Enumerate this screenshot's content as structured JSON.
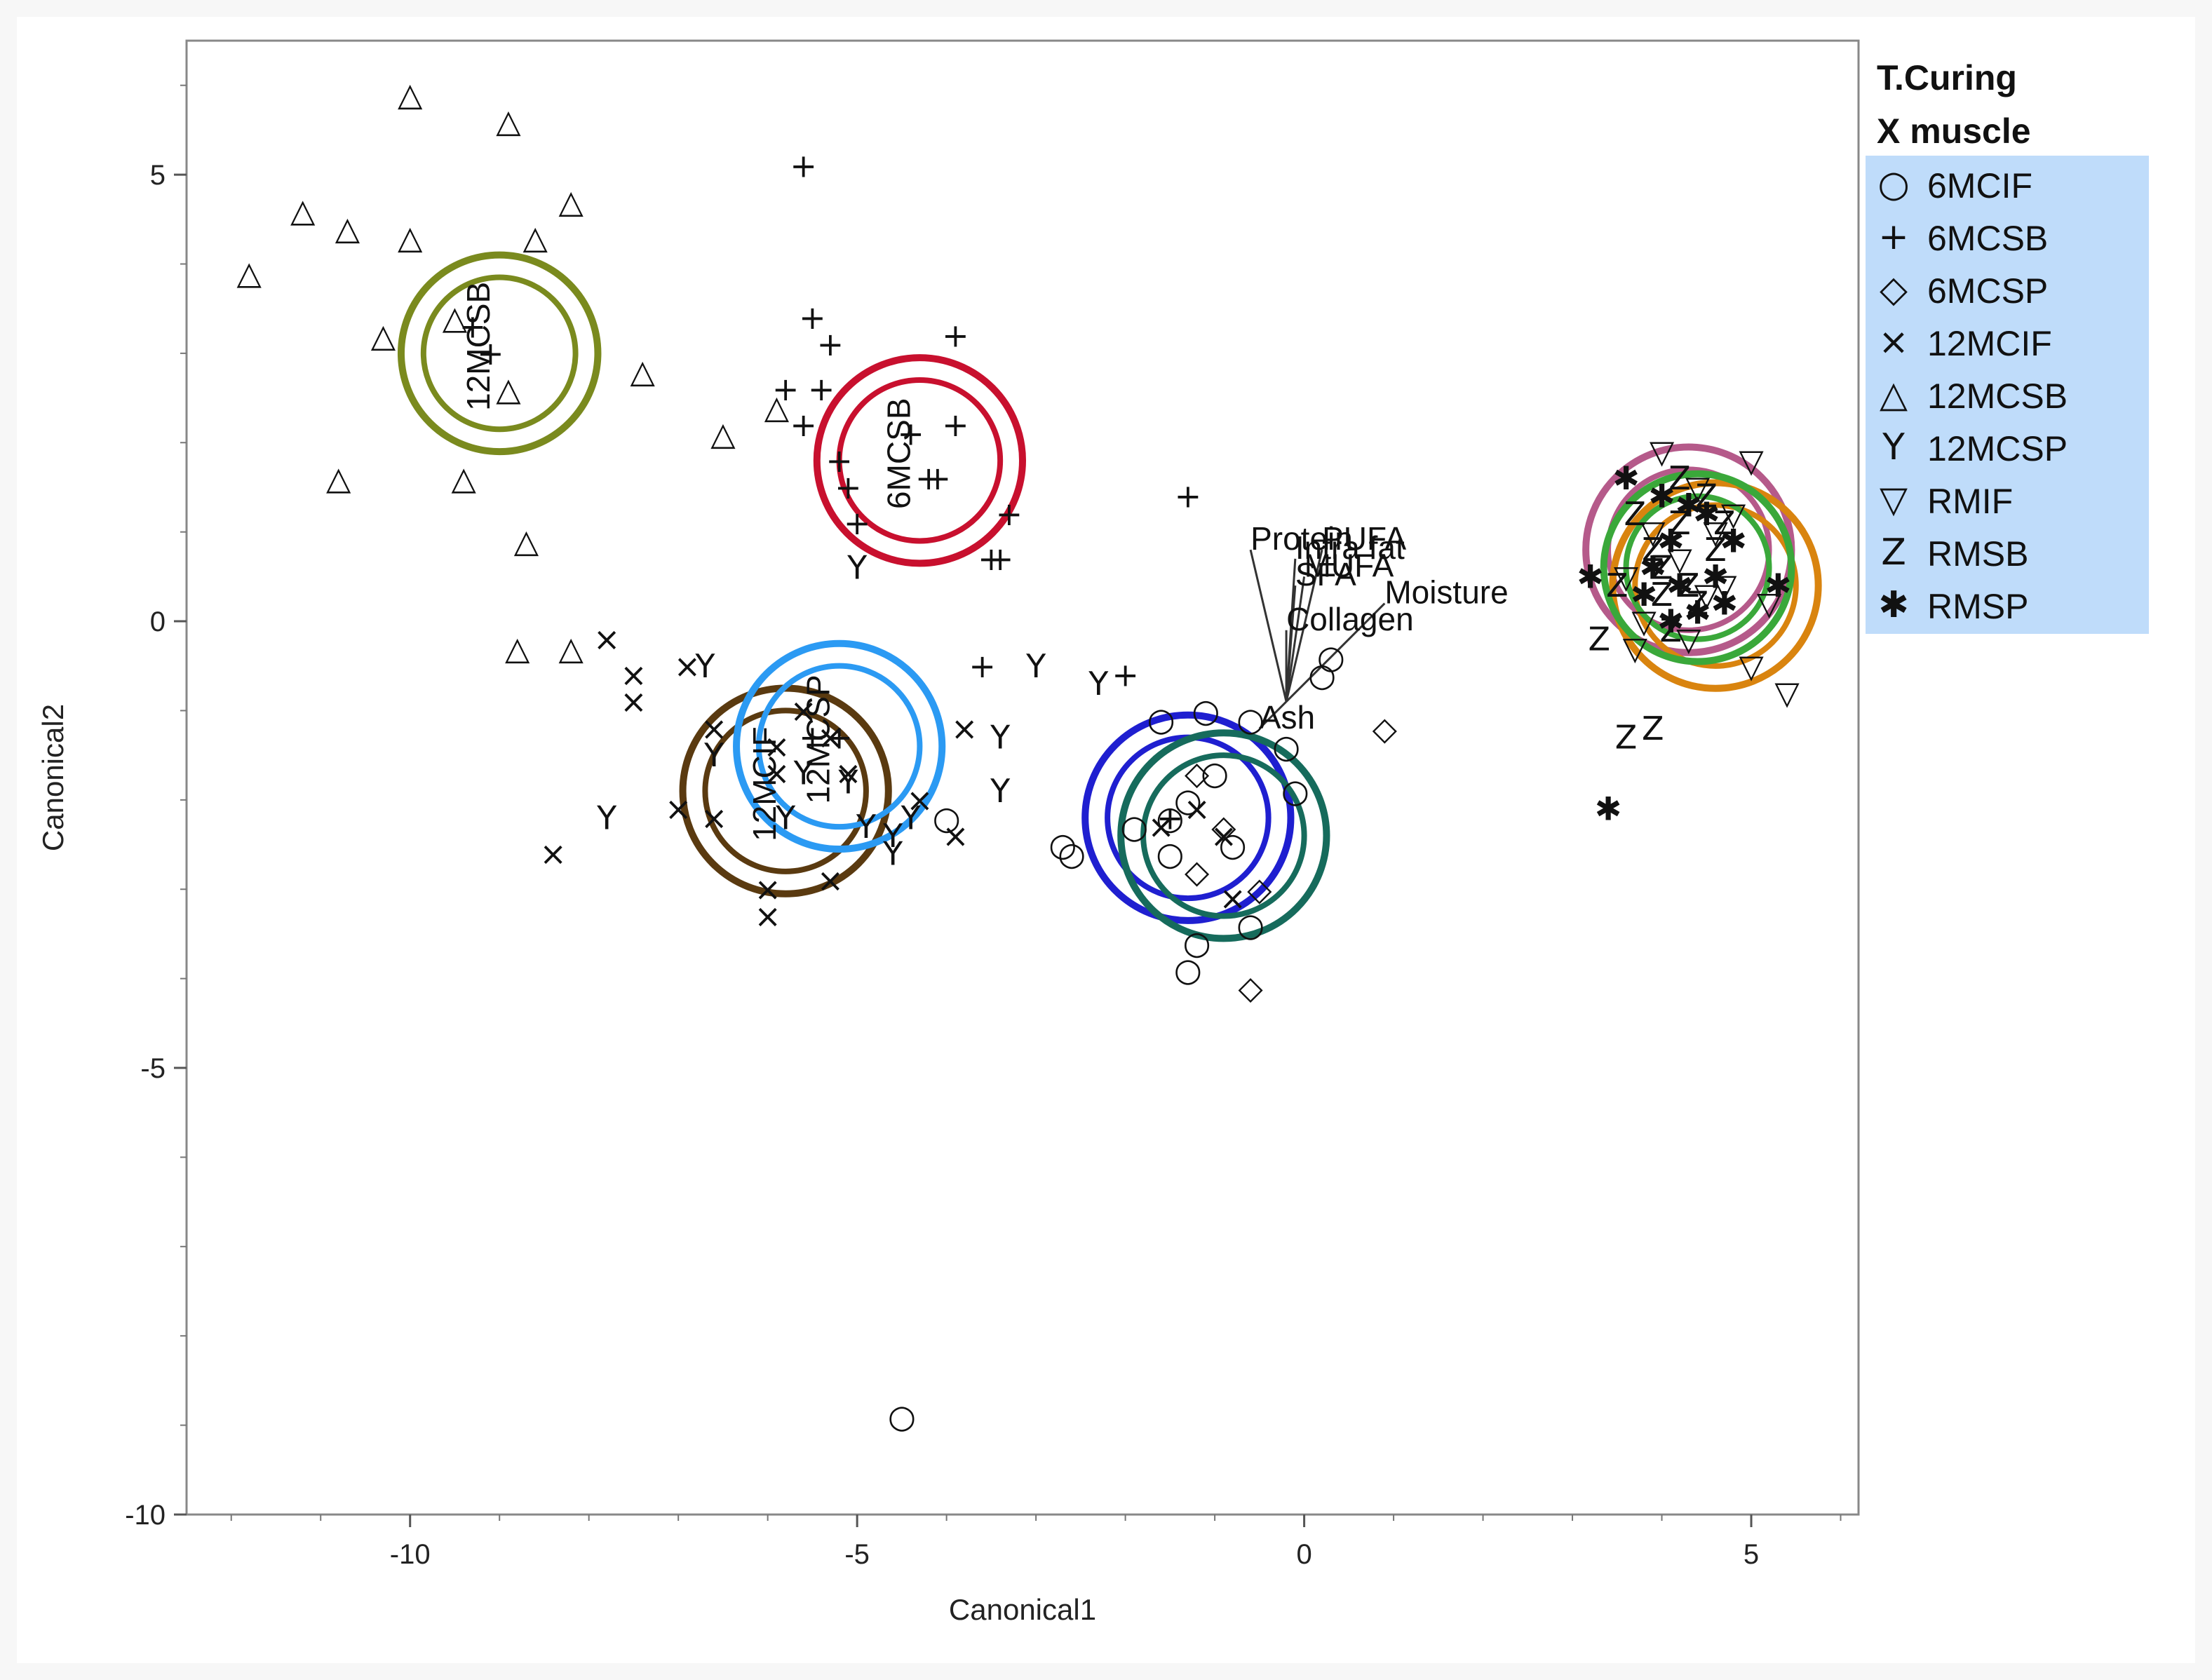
{
  "chart_data": {
    "type": "scatter",
    "title": "",
    "xlabel": "Canonical1",
    "ylabel": "Canonical2",
    "xlim": [
      -12.5,
      6.2
    ],
    "ylim": [
      -10,
      6.5
    ],
    "xticks": [
      -10,
      -5,
      0,
      5
    ],
    "yticks": [
      -10,
      -5,
      0,
      5
    ],
    "xtick_labels": [
      "-10",
      "-5",
      "0",
      "5"
    ],
    "ytick_labels": [
      "-10",
      "-5",
      "0",
      "5"
    ],
    "legend": {
      "title_line1": "T.Curing",
      "title_line2": "X muscle",
      "position": "right",
      "entries": [
        {
          "label": "6MCIF",
          "symbol": "○"
        },
        {
          "label": "6MCSB",
          "symbol": "+"
        },
        {
          "label": "6MCSP",
          "symbol": "◇"
        },
        {
          "label": "12MCIF",
          "symbol": "×"
        },
        {
          "label": "12MCSB",
          "symbol": "△"
        },
        {
          "label": "12MCSP",
          "symbol": "Y"
        },
        {
          "label": "RMIF",
          "symbol": "▽"
        },
        {
          "label": "RMSB",
          "symbol": "Z"
        },
        {
          "label": "RMSP",
          "symbol": "✱"
        }
      ]
    },
    "series": [
      {
        "name": "6MCIF",
        "symbol": "○",
        "points": [
          [
            -1.3,
            -2.0
          ],
          [
            -1.0,
            -1.7
          ],
          [
            -0.8,
            -2.5
          ],
          [
            -1.5,
            -2.6
          ],
          [
            -1.2,
            -3.6
          ],
          [
            -1.3,
            -3.9
          ],
          [
            -0.6,
            -3.4
          ],
          [
            -0.6,
            -1.1
          ],
          [
            -1.1,
            -1.0
          ],
          [
            -1.6,
            -1.1
          ],
          [
            -2.7,
            -2.5
          ],
          [
            -2.6,
            -2.6
          ],
          [
            -0.2,
            -1.4
          ],
          [
            0.2,
            -0.6
          ],
          [
            0.3,
            -0.4
          ],
          [
            -0.1,
            -1.9
          ],
          [
            -1.5,
            -2.2
          ],
          [
            -1.9,
            -2.3
          ],
          [
            -4.0,
            -2.2
          ],
          [
            -4.5,
            -8.9
          ]
        ]
      },
      {
        "name": "6MCSB",
        "symbol": "+",
        "points": [
          [
            -5.6,
            5.1
          ],
          [
            -5.5,
            3.4
          ],
          [
            -5.3,
            3.1
          ],
          [
            -5.4,
            2.6
          ],
          [
            -5.8,
            2.6
          ],
          [
            -5.6,
            2.2
          ],
          [
            -5.2,
            1.8
          ],
          [
            -5.1,
            1.5
          ],
          [
            -5.0,
            1.1
          ],
          [
            -4.4,
            2.1
          ],
          [
            -4.2,
            1.6
          ],
          [
            -4.1,
            1.6
          ],
          [
            -3.9,
            2.2
          ],
          [
            -3.9,
            3.2
          ],
          [
            -3.3,
            1.2
          ],
          [
            -3.4,
            0.7
          ],
          [
            -3.5,
            0.7
          ],
          [
            -1.3,
            1.4
          ],
          [
            -3.6,
            -0.5
          ],
          [
            -2.0,
            -0.6
          ],
          [
            -9.3,
            3.3
          ],
          [
            -9.1,
            3.0
          ],
          [
            -5.2,
            -1.3
          ],
          [
            -5.5,
            -1.3
          ],
          [
            -1.5,
            -2.2
          ]
        ]
      },
      {
        "name": "6MCSP",
        "symbol": "◇",
        "points": [
          [
            0.9,
            -1.2
          ],
          [
            -0.6,
            -4.1
          ],
          [
            -1.2,
            -2.8
          ],
          [
            -0.9,
            -2.3
          ],
          [
            -1.2,
            -1.7
          ],
          [
            -0.5,
            -3.0
          ]
        ]
      },
      {
        "name": "12MCIF",
        "symbol": "×",
        "points": [
          [
            -7.8,
            -0.2
          ],
          [
            -7.5,
            -0.6
          ],
          [
            -7.5,
            -0.9
          ],
          [
            -6.9,
            -0.5
          ],
          [
            -6.6,
            -1.2
          ],
          [
            -7.0,
            -2.1
          ],
          [
            -6.6,
            -2.2
          ],
          [
            -8.4,
            -2.6
          ],
          [
            -6.0,
            -3.0
          ],
          [
            -6.0,
            -3.3
          ],
          [
            -5.3,
            -2.9
          ],
          [
            -5.1,
            -1.7
          ],
          [
            -5.3,
            -1.3
          ],
          [
            -4.3,
            -2.0
          ],
          [
            -3.9,
            -2.4
          ],
          [
            -3.8,
            -1.2
          ],
          [
            -5.9,
            -1.4
          ],
          [
            -5.6,
            -1.0
          ],
          [
            -5.9,
            -1.7
          ],
          [
            -1.2,
            -2.1
          ],
          [
            -0.9,
            -2.4
          ],
          [
            -1.6,
            -2.3
          ],
          [
            -0.8,
            -3.1
          ]
        ]
      },
      {
        "name": "12MCSB",
        "symbol": "△",
        "points": [
          [
            -10.0,
            5.9
          ],
          [
            -8.9,
            5.6
          ],
          [
            -11.2,
            4.6
          ],
          [
            -10.7,
            4.4
          ],
          [
            -10.0,
            4.3
          ],
          [
            -8.2,
            4.7
          ],
          [
            -8.6,
            4.3
          ],
          [
            -11.8,
            3.9
          ],
          [
            -10.3,
            3.2
          ],
          [
            -9.5,
            3.4
          ],
          [
            -8.9,
            2.6
          ],
          [
            -7.4,
            2.8
          ],
          [
            -6.5,
            2.1
          ],
          [
            -5.9,
            2.4
          ],
          [
            -10.8,
            1.6
          ],
          [
            -9.4,
            1.6
          ],
          [
            -8.7,
            0.9
          ],
          [
            -8.8,
            -0.3
          ],
          [
            -8.2,
            -0.3
          ]
        ]
      },
      {
        "name": "12MCSP",
        "symbol": "Y",
        "points": [
          [
            -6.7,
            -0.5
          ],
          [
            -3.0,
            -0.5
          ],
          [
            -2.3,
            -0.7
          ],
          [
            -6.6,
            -1.5
          ],
          [
            -7.8,
            -2.2
          ],
          [
            -3.4,
            -1.3
          ],
          [
            -3.4,
            -1.9
          ],
          [
            -5.0,
            0.6
          ],
          [
            -4.6,
            -2.4
          ],
          [
            -4.4,
            -2.2
          ],
          [
            -4.6,
            -2.6
          ],
          [
            -5.6,
            -1.7
          ],
          [
            -5.8,
            -2.2
          ],
          [
            -4.9,
            -2.3
          ],
          [
            -5.1,
            -1.8
          ]
        ]
      },
      {
        "name": "RMIF",
        "symbol": "▽",
        "points": [
          [
            5.0,
            1.8
          ],
          [
            5.4,
            -0.8
          ],
          [
            4.8,
            1.2
          ],
          [
            5.2,
            0.2
          ],
          [
            5.0,
            -0.5
          ],
          [
            4.7,
            0.4
          ],
          [
            3.6,
            0.5
          ],
          [
            4.0,
            1.9
          ],
          [
            3.8,
            0.0
          ],
          [
            3.7,
            -0.3
          ],
          [
            4.4,
            1.5
          ],
          [
            4.6,
            1.0
          ],
          [
            4.2,
            0.7
          ],
          [
            4.5,
            0.3
          ],
          [
            3.9,
            1.0
          ],
          [
            4.3,
            -0.2
          ]
        ]
      },
      {
        "name": "RMSB",
        "symbol": "Z",
        "points": [
          [
            3.6,
            -1.3
          ],
          [
            3.9,
            -1.2
          ],
          [
            3.3,
            -0.2
          ],
          [
            3.5,
            0.4
          ],
          [
            4.0,
            0.6
          ],
          [
            4.2,
            1.1
          ],
          [
            4.4,
            0.2
          ],
          [
            4.6,
            0.8
          ],
          [
            4.1,
            -0.1
          ],
          [
            3.7,
            1.2
          ],
          [
            4.5,
            1.4
          ],
          [
            4.3,
            0.4
          ],
          [
            3.9,
            0.8
          ],
          [
            4.7,
            1.1
          ],
          [
            4.2,
            1.6
          ],
          [
            4.0,
            0.3
          ]
        ]
      },
      {
        "name": "RMSP",
        "symbol": "✱",
        "points": [
          [
            3.4,
            -2.1
          ],
          [
            3.2,
            0.5
          ],
          [
            3.6,
            1.6
          ],
          [
            4.1,
            0.9
          ],
          [
            4.6,
            0.5
          ],
          [
            4.8,
            0.9
          ],
          [
            4.3,
            1.3
          ],
          [
            4.4,
            0.1
          ],
          [
            3.9,
            0.6
          ],
          [
            4.7,
            0.2
          ],
          [
            4.0,
            1.4
          ],
          [
            4.5,
            1.2
          ],
          [
            4.2,
            0.4
          ],
          [
            3.8,
            0.3
          ],
          [
            5.3,
            0.4
          ],
          [
            4.1,
            0.0
          ]
        ]
      }
    ],
    "ellipses": [
      {
        "label": "12MCSB",
        "label_visible": true,
        "color": "#7a8a1e",
        "center": [
          -9.0,
          3.0
        ],
        "r_outer": 1.1,
        "r_inner": 0.85
      },
      {
        "label": "6MCSB",
        "label_visible": true,
        "color": "#c8102e",
        "center": [
          -4.3,
          1.8
        ],
        "r_outer": 1.15,
        "r_inner": 0.9
      },
      {
        "label": "12MCIF",
        "label_visible": true,
        "color": "#5a3a10",
        "center": [
          -5.8,
          -1.9
        ],
        "r_outer": 1.15,
        "r_inner": 0.9
      },
      {
        "label": "12MCSP",
        "label_visible": true,
        "color": "#2b9af3",
        "center": [
          -5.2,
          -1.4
        ],
        "r_outer": 1.15,
        "r_inner": 0.9
      },
      {
        "label": "6MCIF",
        "label_visible": false,
        "color": "#1f1fd0",
        "center": [
          -1.3,
          -2.2
        ],
        "r_outer": 1.15,
        "r_inner": 0.9
      },
      {
        "label": "6MCSP",
        "label_visible": false,
        "color": "#166b5c",
        "center": [
          -0.9,
          -2.4
        ],
        "r_outer": 1.15,
        "r_inner": 0.9
      },
      {
        "label": "RMIF",
        "label_visible": false,
        "color": "#b55a8a",
        "center": [
          4.3,
          0.8
        ],
        "r_outer": 1.15,
        "r_inner": 0.9
      },
      {
        "label": "RMSB",
        "label_visible": false,
        "color": "#d9840f",
        "center": [
          4.6,
          0.4
        ],
        "r_outer": 1.15,
        "r_inner": 0.9
      },
      {
        "label": "RMSP",
        "label_visible": false,
        "color": "#3aa83a",
        "center": [
          4.4,
          0.6
        ],
        "r_outer": 1.05,
        "r_inner": 0.8
      }
    ],
    "biplot_origin": [
      -0.2,
      -0.9
    ],
    "biplot_rays": [
      {
        "label": "Protein",
        "tip": [
          -0.6,
          0.8
        ],
        "text_pos": [
          -0.6,
          0.8
        ]
      },
      {
        "label": "PUFA",
        "tip": [
          0.2,
          0.8
        ],
        "text_pos": [
          0.2,
          0.8
        ]
      },
      {
        "label": "Intra fat",
        "tip": [
          -0.1,
          0.7
        ],
        "text_pos": [
          -0.1,
          0.7
        ]
      },
      {
        "label": "MUFA",
        "tip": [
          0.0,
          0.5
        ],
        "text_pos": [
          0.0,
          0.5
        ]
      },
      {
        "label": "SFA",
        "tip": [
          -0.1,
          0.4
        ],
        "text_pos": [
          -0.1,
          0.4
        ]
      },
      {
        "label": "Moisture",
        "tip": [
          0.9,
          0.2
        ],
        "text_pos": [
          0.9,
          0.2
        ]
      },
      {
        "label": "Collagen",
        "tip": [
          -0.2,
          -0.1
        ],
        "text_pos": [
          -0.2,
          -0.1
        ]
      },
      {
        "label": "Ash",
        "tip": [
          -0.5,
          -1.2
        ],
        "text_pos": [
          -0.5,
          -1.2
        ]
      }
    ]
  }
}
